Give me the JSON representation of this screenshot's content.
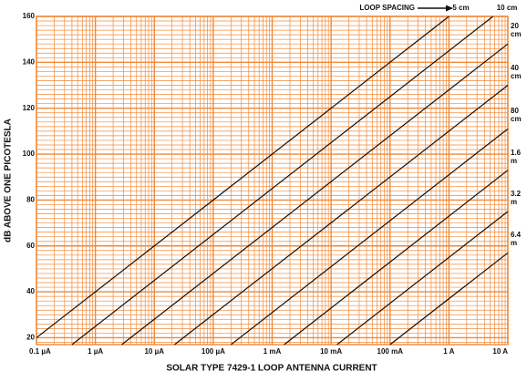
{
  "chart_data": {
    "type": "line",
    "annotation": "LOOP SPACING",
    "x_label": "SOLAR TYPE 7429-1 LOOP ANTENNA CURRENT",
    "y_label": "dB ABOVE ONE PICOTESLA",
    "x_log": true,
    "grid": true,
    "grid_color": "#ef8a3a",
    "xlim": [
      1e-07,
      10
    ],
    "xticks": [
      {
        "value": 1e-07,
        "label": "0.1 µA"
      },
      {
        "value": 1e-06,
        "label": "1 µA"
      },
      {
        "value": 1e-05,
        "label": "10 µA"
      },
      {
        "value": 0.0001,
        "label": "100 µA"
      },
      {
        "value": 0.001,
        "label": "1 mA"
      },
      {
        "value": 0.01,
        "label": "10 mA"
      },
      {
        "value": 0.1,
        "label": "100 mA"
      },
      {
        "value": 1,
        "label": "1 A"
      },
      {
        "value": 10,
        "label": "10 A"
      }
    ],
    "ylim": [
      17,
      160
    ],
    "yticks": [
      20,
      40,
      60,
      80,
      100,
      120,
      140,
      160
    ],
    "series": [
      {
        "name": "5 cm",
        "color": "#111111",
        "x": [
          1e-07,
          1
        ],
        "values": [
          20,
          160
        ]
      },
      {
        "name": "10 cm",
        "color": "#111111",
        "x": [
          4e-07,
          5.6
        ],
        "values": [
          17,
          160
        ]
      },
      {
        "name": "20 cm",
        "color": "#111111",
        "x": [
          2.8e-06,
          10
        ],
        "values": [
          17,
          148
        ]
      },
      {
        "name": "40 cm",
        "color": "#111111",
        "x": [
          2.2e-05,
          10
        ],
        "values": [
          17,
          130
        ]
      },
      {
        "name": "80 cm",
        "color": "#111111",
        "x": [
          0.0002,
          10
        ],
        "values": [
          17,
          111
        ]
      },
      {
        "name": "1.6 m",
        "color": "#111111",
        "x": [
          0.0016,
          10
        ],
        "values": [
          17,
          93
        ]
      },
      {
        "name": "3.2 m",
        "color": "#111111",
        "x": [
          0.0126,
          10
        ],
        "values": [
          17,
          75
        ]
      },
      {
        "name": "6.4 m",
        "color": "#111111",
        "x": [
          0.1,
          10
        ],
        "values": [
          17,
          57
        ]
      }
    ]
  }
}
